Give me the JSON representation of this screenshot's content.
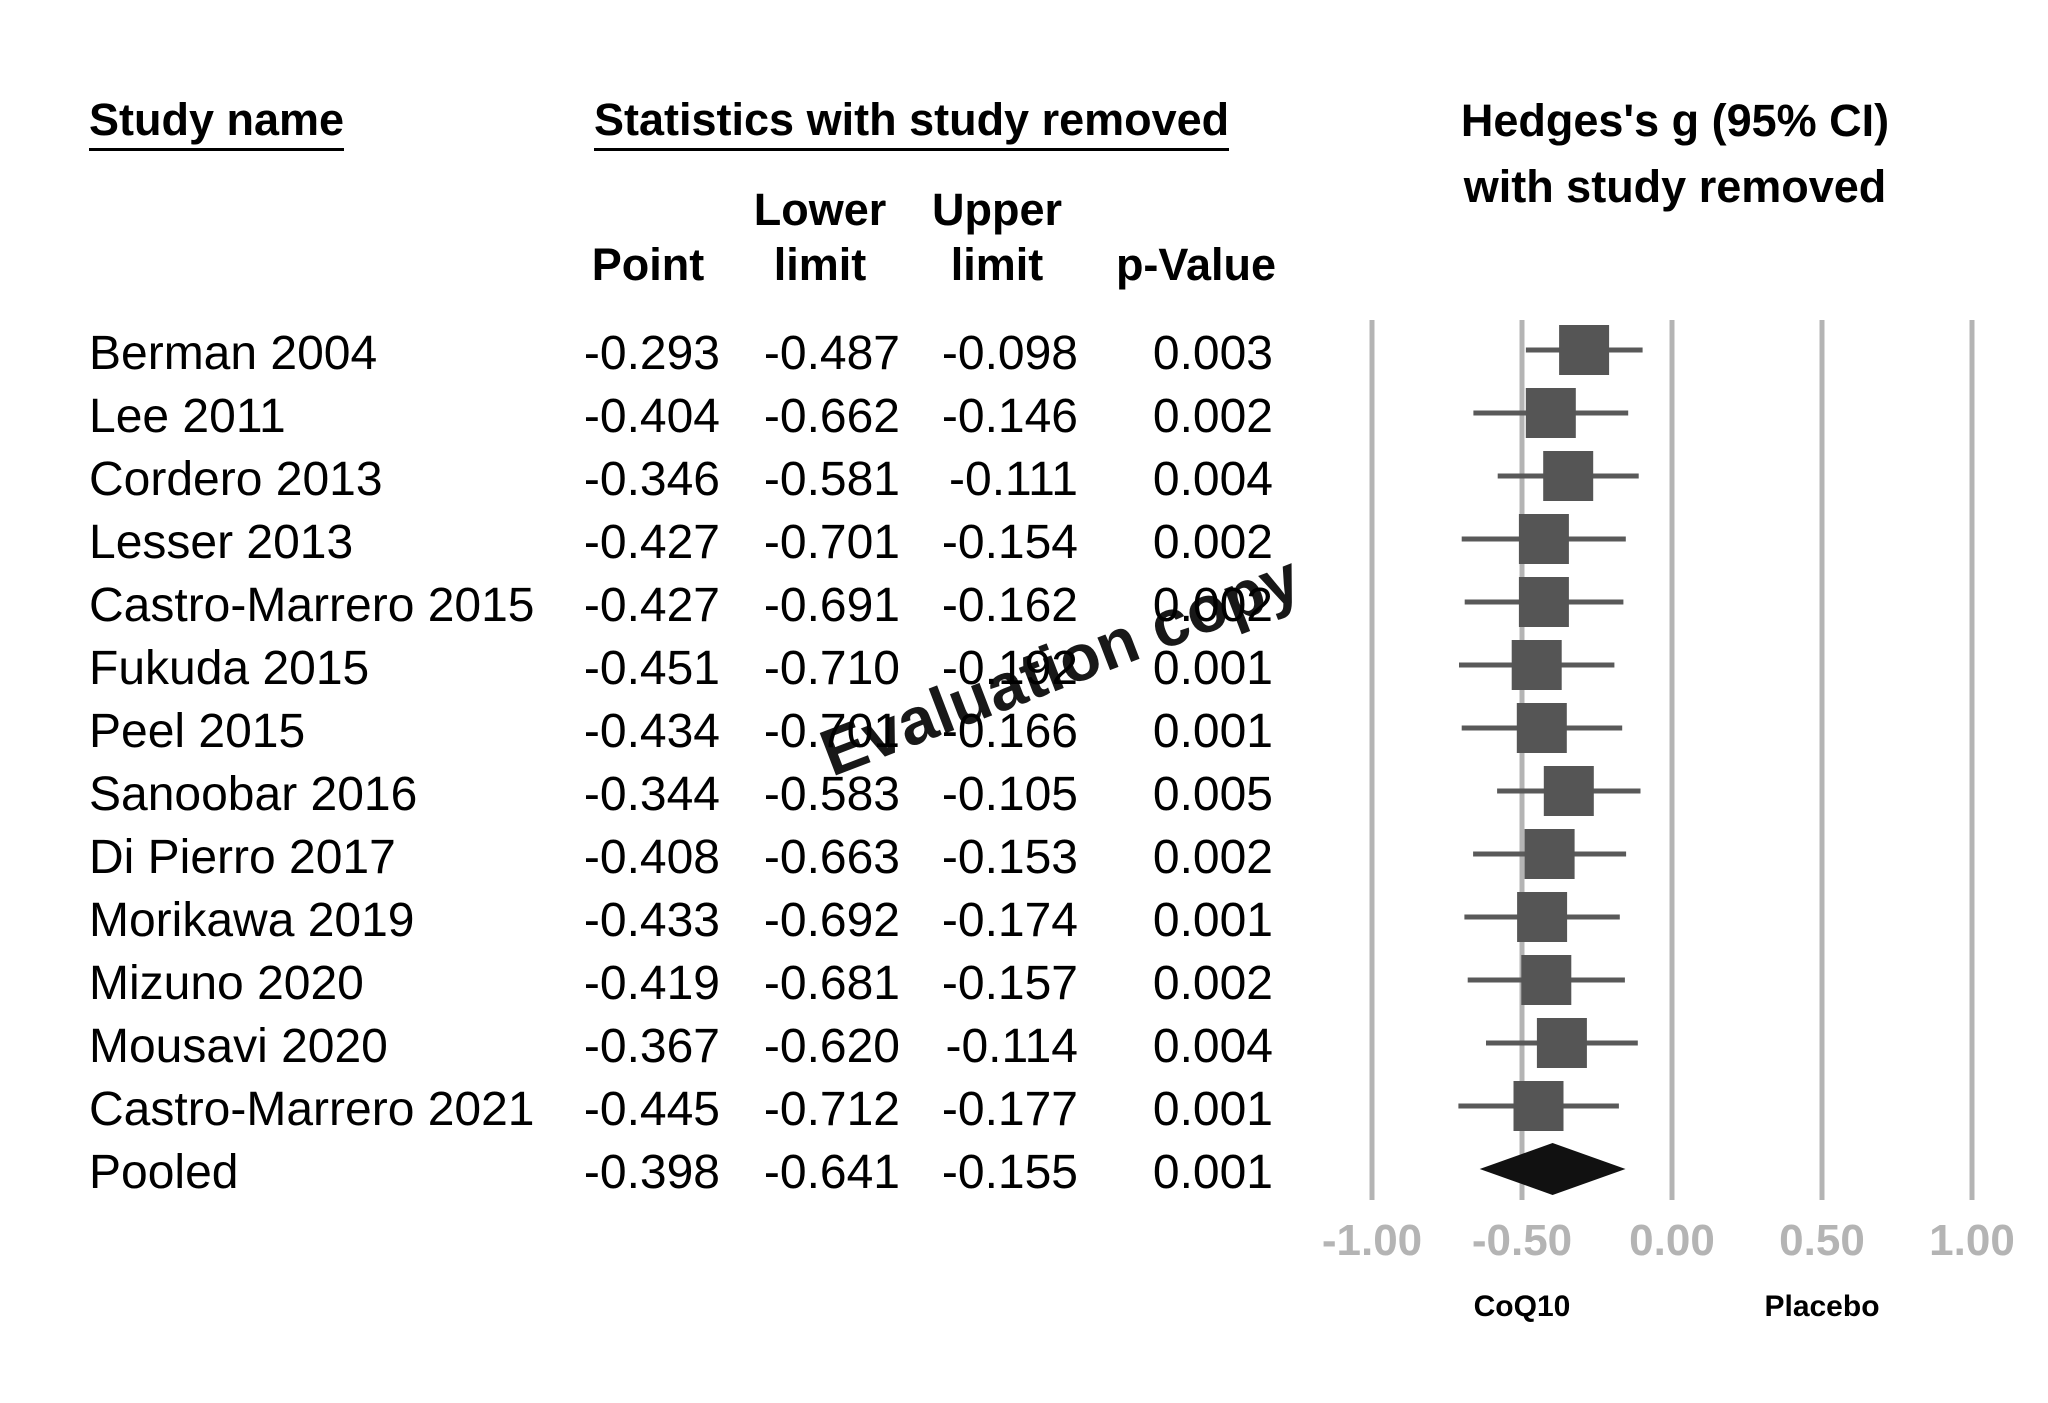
{
  "headers": {
    "study_name": "Study name",
    "stats": "Statistics with study removed",
    "point": "Point",
    "lower_1": "Lower",
    "lower_2": "limit",
    "upper_1": "Upper",
    "upper_2": "limit",
    "pvalue": "p-Value"
  },
  "plot_title": {
    "line1": "Hedges's g (95% CI)",
    "line2": "with study removed"
  },
  "watermark": "Evaluation copy",
  "chart_data": {
    "type": "forest",
    "x_ticks": [
      "-1.00",
      "-0.50",
      "0.00",
      "0.50",
      "1.00"
    ],
    "xlim": [
      -1.0,
      1.0
    ],
    "gridlines": true,
    "direction_labels": {
      "left": "CoQ10",
      "right": "Placebo"
    },
    "studies": [
      {
        "name": "Berman 2004",
        "point": "-0.293",
        "lower": "-0.487",
        "upper": "-0.098",
        "p": "0.003",
        "g": -0.293,
        "lo": -0.487,
        "hi": -0.098
      },
      {
        "name": "Lee 2011",
        "point": "-0.404",
        "lower": "-0.662",
        "upper": "-0.146",
        "p": "0.002",
        "g": -0.404,
        "lo": -0.662,
        "hi": -0.146
      },
      {
        "name": "Cordero 2013",
        "point": "-0.346",
        "lower": "-0.581",
        "upper": "-0.111",
        "p": "0.004",
        "g": -0.346,
        "lo": -0.581,
        "hi": -0.111
      },
      {
        "name": "Lesser 2013",
        "point": "-0.427",
        "lower": "-0.701",
        "upper": "-0.154",
        "p": "0.002",
        "g": -0.427,
        "lo": -0.701,
        "hi": -0.154
      },
      {
        "name": "Castro-Marrero 2015",
        "point": "-0.427",
        "lower": "-0.691",
        "upper": "-0.162",
        "p": "0.002",
        "g": -0.427,
        "lo": -0.691,
        "hi": -0.162
      },
      {
        "name": "Fukuda 2015",
        "point": "-0.451",
        "lower": "-0.710",
        "upper": "-0.192",
        "p": "0.001",
        "g": -0.451,
        "lo": -0.71,
        "hi": -0.192
      },
      {
        "name": "Peel 2015",
        "point": "-0.434",
        "lower": "-0.701",
        "upper": "-0.166",
        "p": "0.001",
        "g": -0.434,
        "lo": -0.701,
        "hi": -0.166
      },
      {
        "name": "Sanoobar 2016",
        "point": "-0.344",
        "lower": "-0.583",
        "upper": "-0.105",
        "p": "0.005",
        "g": -0.344,
        "lo": -0.583,
        "hi": -0.105
      },
      {
        "name": "Di Pierro 2017",
        "point": "-0.408",
        "lower": "-0.663",
        "upper": "-0.153",
        "p": "0.002",
        "g": -0.408,
        "lo": -0.663,
        "hi": -0.153
      },
      {
        "name": "Morikawa 2019",
        "point": "-0.433",
        "lower": "-0.692",
        "upper": "-0.174",
        "p": "0.001",
        "g": -0.433,
        "lo": -0.692,
        "hi": -0.174
      },
      {
        "name": "Mizuno 2020",
        "point": "-0.419",
        "lower": "-0.681",
        "upper": "-0.157",
        "p": "0.002",
        "g": -0.419,
        "lo": -0.681,
        "hi": -0.157
      },
      {
        "name": "Mousavi 2020",
        "point": "-0.367",
        "lower": "-0.620",
        "upper": "-0.114",
        "p": "0.004",
        "g": -0.367,
        "lo": -0.62,
        "hi": -0.114
      },
      {
        "name": "Castro-Marrero 2021",
        "point": "-0.445",
        "lower": "-0.712",
        "upper": "-0.177",
        "p": "0.001",
        "g": -0.445,
        "lo": -0.712,
        "hi": -0.177
      }
    ],
    "pooled": {
      "name": "Pooled",
      "point": "-0.398",
      "lower": "-0.641",
      "upper": "-0.155",
      "p": "0.001",
      "g": -0.398,
      "lo": -0.641,
      "hi": -0.155
    },
    "colors": {
      "marker": "#555555",
      "ci_line": "#595959",
      "gridline": "#b4b4b4",
      "pooled": "#111111"
    }
  }
}
